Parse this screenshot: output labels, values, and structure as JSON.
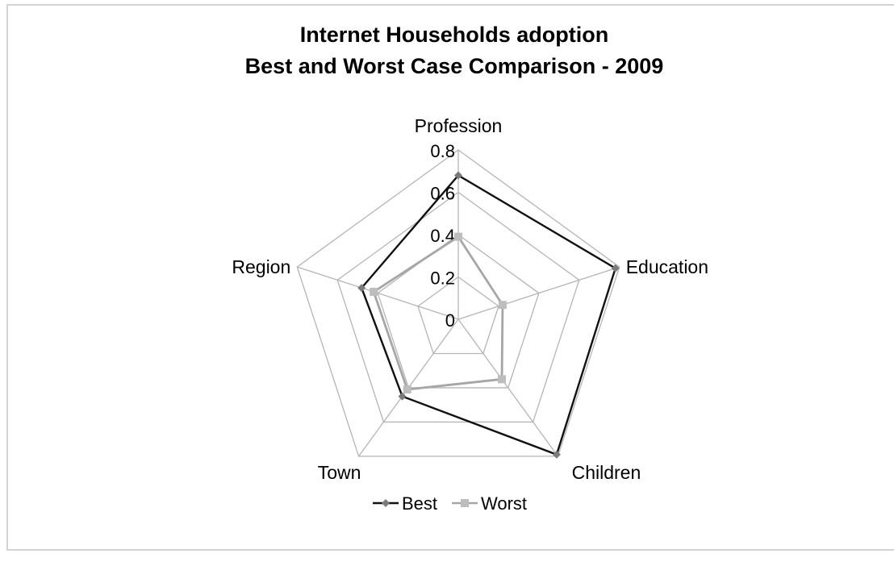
{
  "chart_data": {
    "type": "radar",
    "title": "Internet Households adoption",
    "subtitle": "Best and Worst Case Comparison - 2009",
    "categories": [
      "Profession",
      "Education",
      "Children",
      "Town",
      "Region"
    ],
    "r_ticks": [
      "0",
      "0.2",
      "0.4",
      "0.6",
      "0.8"
    ],
    "r_range": [
      0,
      0.8
    ],
    "grid": true,
    "legend_position": "bottom",
    "series": [
      {
        "name": "Best",
        "values": [
          0.68,
          0.78,
          0.79,
          0.45,
          0.48
        ],
        "color": "#111111",
        "marker_color": "#7a7a7a",
        "marker": "diamond"
      },
      {
        "name": "Worst",
        "values": [
          0.39,
          0.22,
          0.35,
          0.41,
          0.42
        ],
        "color": "#a6a6a6",
        "marker_color": "#bdbdbd",
        "marker": "square"
      }
    ]
  }
}
